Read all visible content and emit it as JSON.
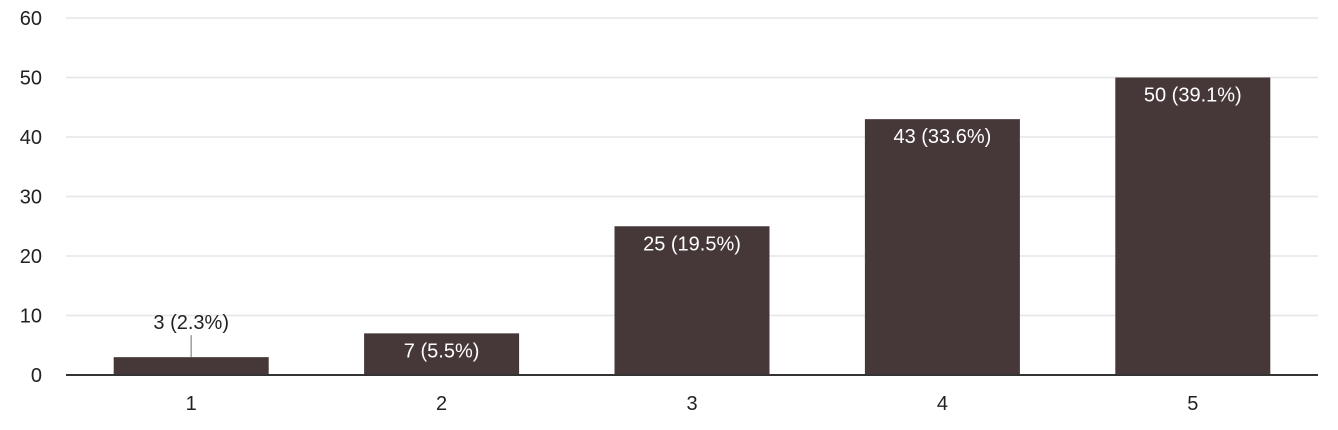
{
  "colors": {
    "bar": "#463838",
    "grid": "#e6e6e6",
    "axis": "#333333",
    "label_inside": "#ffffff",
    "label_outside": "#222222",
    "leader": "#9e9e9e"
  },
  "chart_data": {
    "type": "bar",
    "categories": [
      "1",
      "2",
      "3",
      "4",
      "5"
    ],
    "values": [
      3,
      7,
      25,
      43,
      50
    ],
    "data_labels": [
      "3 (2.3%)",
      "7 (5.5%)",
      "25 (19.5%)",
      "43 (33.6%)",
      "50 (39.1%)"
    ],
    "ylim": [
      0,
      60
    ],
    "yticks": [
      "0",
      "10",
      "20",
      "30",
      "40",
      "50",
      "60"
    ],
    "grid": true,
    "legend": "none"
  }
}
